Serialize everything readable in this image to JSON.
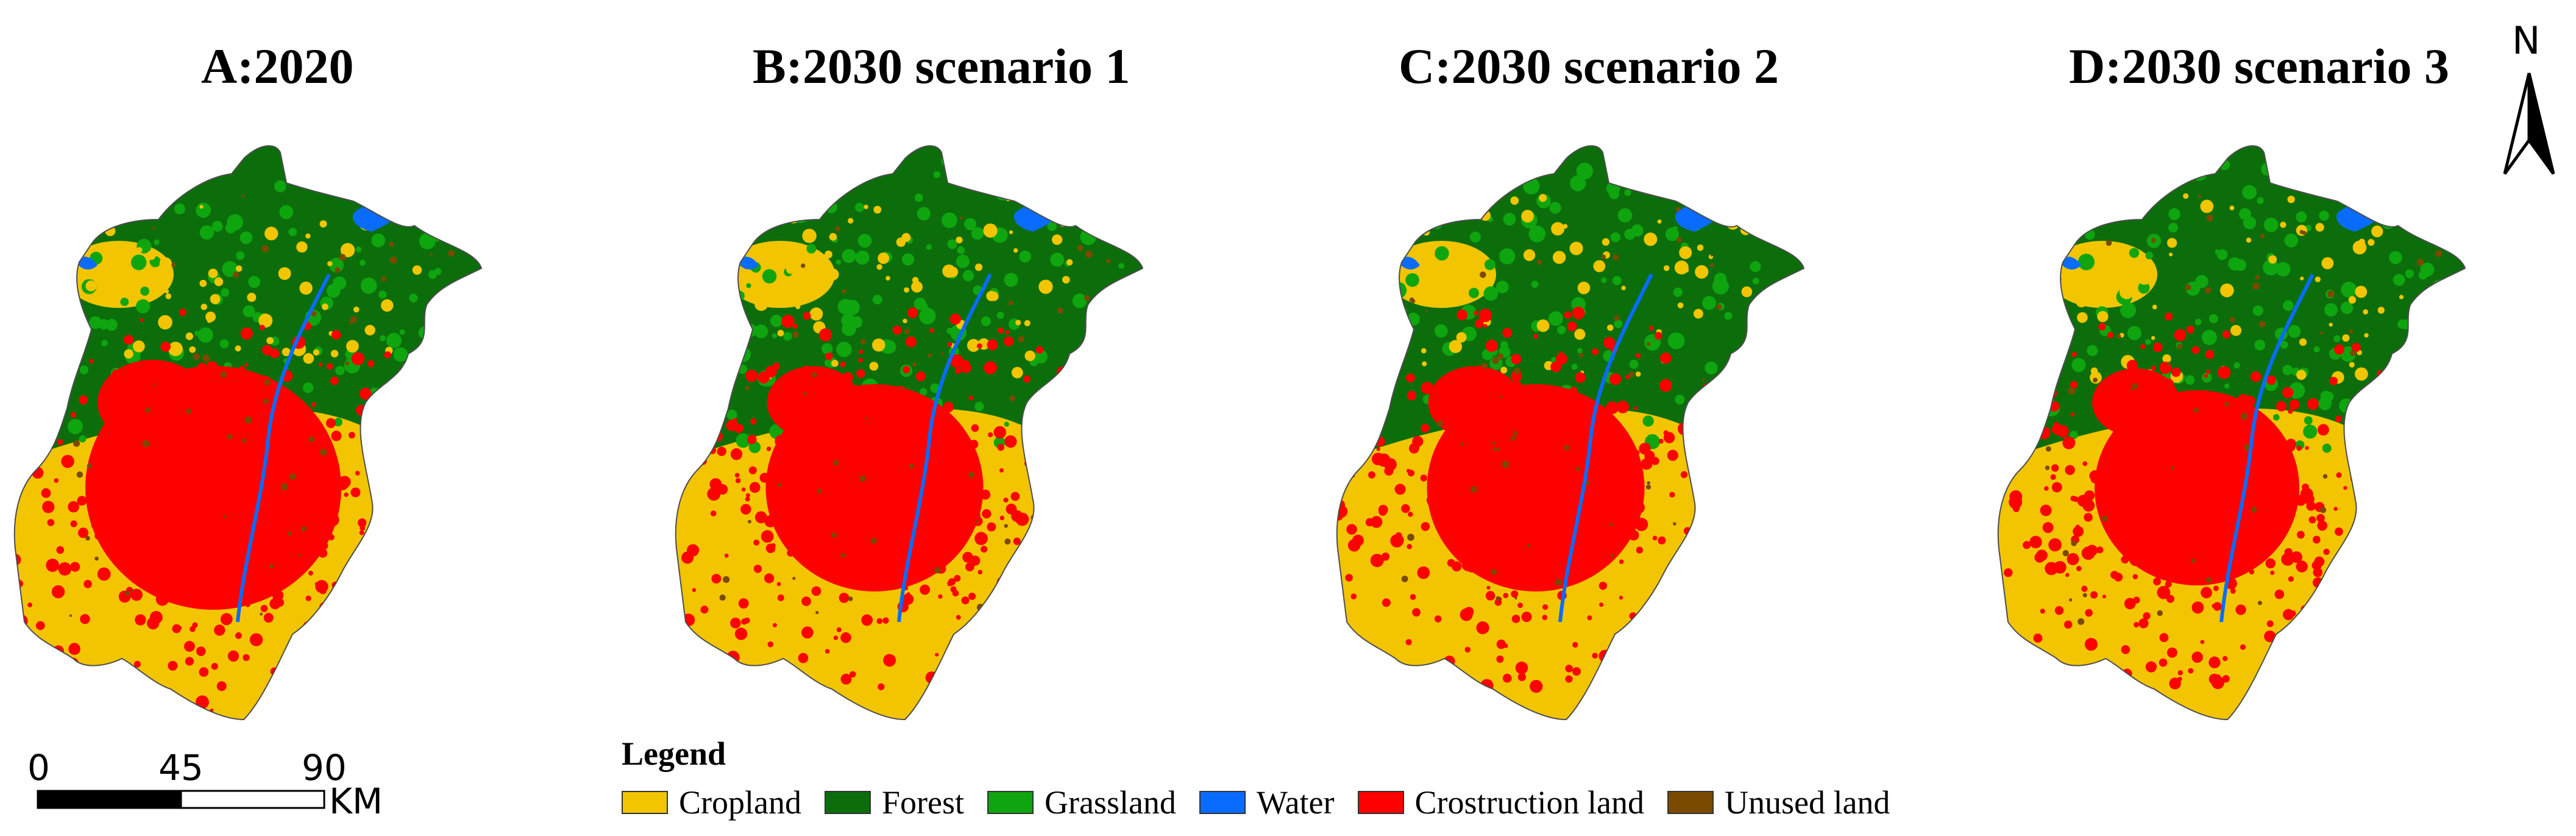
{
  "panels": [
    {
      "title": "A:2020"
    },
    {
      "title": "B:2030 scenario 1"
    },
    {
      "title": "C:2030 scenario 2"
    },
    {
      "title": "D:2030 scenario 3"
    }
  ],
  "north_arrow": {
    "label": "N"
  },
  "scale_bar": {
    "ticks": [
      "0",
      "45",
      "90"
    ],
    "unit": "KM"
  },
  "legend": {
    "title": "Legend",
    "items": [
      {
        "label": "Cropland",
        "color": "#F2C500",
        "icon": "cropland-swatch"
      },
      {
        "label": "Forest",
        "color": "#0B6E0B",
        "icon": "forest-swatch"
      },
      {
        "label": "Grassland",
        "color": "#0FA50F",
        "icon": "grassland-swatch"
      },
      {
        "label": "Water",
        "color": "#0A6CFF",
        "icon": "water-swatch"
      },
      {
        "label": "Crostruction land",
        "color": "#FF0000",
        "icon": "construction-land-swatch"
      },
      {
        "label": "Unused land",
        "color": "#7A4A00",
        "icon": "unused-land-swatch"
      }
    ]
  }
}
